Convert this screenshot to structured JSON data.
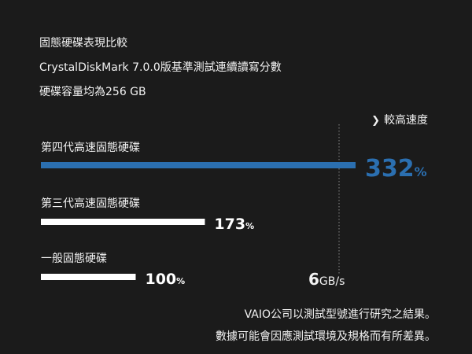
{
  "header": {
    "line1": "固態硬碟表現比較",
    "line2": "CrystalDiskMark 7.0.0版基準測試連續讀寫分數",
    "line3": "硬碟容量均為256 GB"
  },
  "faster_label": "較高速度",
  "reference": {
    "number": "6",
    "unit": "GB/s"
  },
  "colors": {
    "background": "#1b1b1b",
    "highlight": "#2b6fb0",
    "bar": "#ffffff",
    "text": "#f2f2f2"
  },
  "chart_data": {
    "type": "bar",
    "orientation": "horizontal",
    "categories": [
      "第四代高速固態硬碟",
      "第三代高速固態硬碟",
      "一般固態硬碟"
    ],
    "values": [
      332,
      173,
      100
    ],
    "value_suffix": "%",
    "reference_line_label": "6GB/s",
    "grid": false
  },
  "footer": {
    "line1": "VAIO公司以測試型號進行研究之結果。",
    "line2": "數據可能會因應測試環境及規格而有所差異。"
  }
}
